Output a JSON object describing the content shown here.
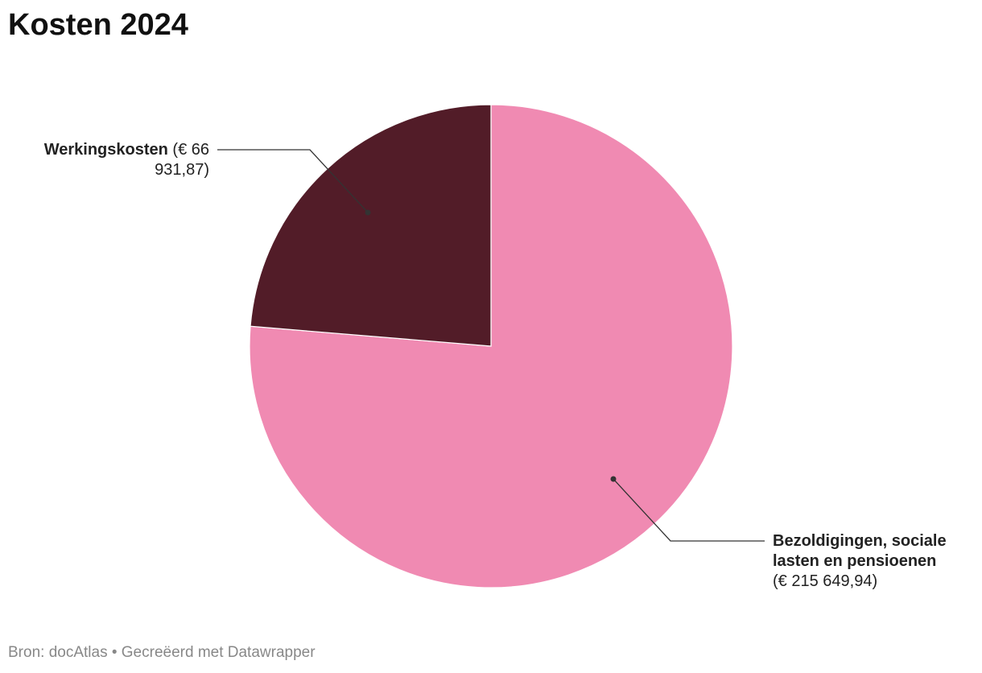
{
  "chart_data": {
    "type": "pie",
    "title": "Kosten 2024",
    "categories": [
      "Bezoldigingen, sociale lasten en pensioenen",
      "Werkingskosten"
    ],
    "values": [
      215649.94,
      66931.87
    ],
    "value_labels": [
      "(€ 215 649,94)",
      "(€ 66 931,87)"
    ],
    "colors": [
      "#f08ab2",
      "#521c28"
    ],
    "source": "Bron: docAtlas • Gecreëerd met Datawrapper"
  }
}
